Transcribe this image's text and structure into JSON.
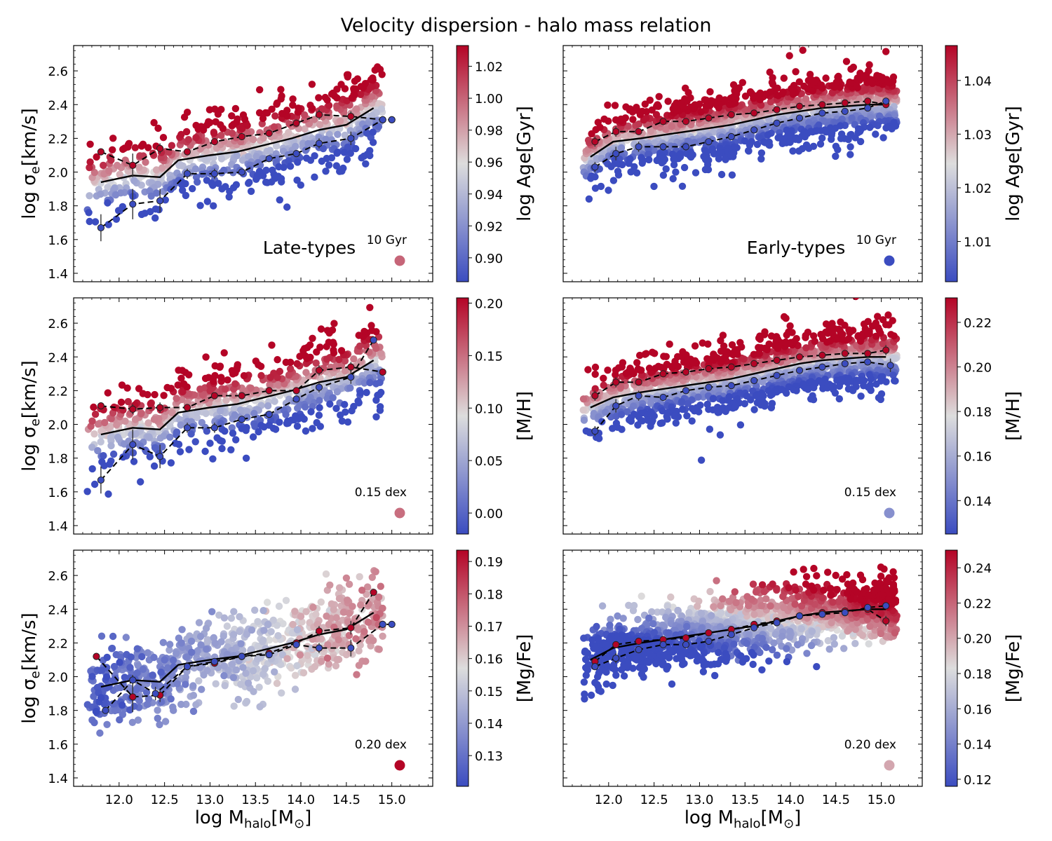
{
  "figure_title": "Velocity dispersion - halo mass relation",
  "xaxis": {
    "label_main": "log M",
    "label_sub": "halo",
    "label_unit": "[M",
    "label_sun": "⊙",
    "label_close": "]",
    "range": [
      11.5,
      15.45
    ],
    "ticks": [
      12.0,
      12.5,
      13.0,
      13.5,
      14.0,
      14.5,
      15.0
    ],
    "tick_labels": [
      "12.0",
      "12.5",
      "13.0",
      "13.5",
      "14.0",
      "14.5",
      "15.0"
    ]
  },
  "yaxis": {
    "label_main": "log σ",
    "label_sub": "e",
    "label_unit": "[km/s]",
    "range": [
      1.35,
      2.75
    ],
    "ticks": [
      1.4,
      1.6,
      1.8,
      2.0,
      2.2,
      2.4,
      2.6
    ],
    "tick_labels": [
      "1.4",
      "1.6",
      "1.8",
      "2.0",
      "2.2",
      "2.4",
      "2.6"
    ]
  },
  "panel_labels": {
    "late": "Late-types",
    "early": "Early-types"
  },
  "colormap": {
    "name": "coolwarm",
    "low": "#3b4cc0",
    "mid": "#dddddd",
    "high": "#b40426"
  },
  "chart_data": [
    {
      "id": "late-age",
      "type": "scatter",
      "population": "Late-types",
      "property": "Age",
      "colorbar": {
        "label": "log Age[Gyr]",
        "range": [
          0.885,
          1.033
        ],
        "ticks": [
          0.9,
          0.92,
          0.94,
          0.96,
          0.98,
          1.0,
          1.02
        ],
        "tick_labels": [
          "0.90",
          "0.92",
          "0.94",
          "0.96",
          "0.98",
          "1.00",
          "1.02"
        ]
      },
      "marker_note": "10 Gyr",
      "marker_value": 1.0,
      "running_mean": {
        "x": [
          11.8,
          12.15,
          12.45,
          12.65,
          13.0,
          13.3,
          13.6,
          13.9,
          14.2,
          14.5,
          14.8
        ],
        "y": [
          1.94,
          1.98,
          1.97,
          2.07,
          2.1,
          2.12,
          2.16,
          2.2,
          2.25,
          2.28,
          2.38
        ]
      },
      "upper_median": {
        "x": [
          11.8,
          12.15,
          12.45,
          12.75,
          13.05,
          13.35,
          13.65,
          13.95,
          14.2,
          14.55,
          14.9,
          15.0
        ],
        "y": [
          2.12,
          2.04,
          2.14,
          2.12,
          2.18,
          2.21,
          2.23,
          2.29,
          2.34,
          2.33,
          2.31,
          2.31
        ],
        "yerr": [
          0.02,
          0.07,
          0.03,
          0.02,
          0.02,
          0.02,
          0.02,
          0.02,
          0.03,
          0.03,
          0.0,
          0.0
        ]
      },
      "lower_median": {
        "x": [
          11.8,
          12.15,
          12.45,
          12.75,
          13.05,
          13.35,
          13.65,
          13.95,
          14.2,
          14.55,
          14.9,
          15.0
        ],
        "y": [
          1.67,
          1.81,
          1.83,
          1.99,
          1.99,
          2.0,
          2.08,
          2.11,
          2.17,
          2.2,
          2.31,
          2.31
        ],
        "yerr": [
          0.08,
          0.09,
          0.07,
          0.03,
          0.03,
          0.02,
          0.02,
          0.02,
          0.03,
          0.04,
          0.0,
          0.0
        ]
      }
    },
    {
      "id": "early-age",
      "type": "scatter",
      "population": "Early-types",
      "property": "Age",
      "colorbar": {
        "label": "log Age[Gyr]",
        "range": [
          1.0025,
          1.0465
        ],
        "ticks": [
          1.01,
          1.02,
          1.03,
          1.04
        ],
        "tick_labels": [
          "1.01",
          "1.02",
          "1.03",
          "1.04"
        ]
      },
      "marker_note": "10 Gyr",
      "marker_value": 1.0025,
      "running_mean": {
        "x": [
          11.8,
          12.05,
          12.35,
          12.6,
          12.85,
          13.1,
          13.35,
          13.6,
          13.85,
          14.1,
          14.35,
          14.6,
          14.85,
          15.05
        ],
        "y": [
          2.09,
          2.18,
          2.2,
          2.22,
          2.24,
          2.26,
          2.28,
          2.31,
          2.34,
          2.36,
          2.38,
          2.39,
          2.4,
          2.4
        ]
      },
      "upper_median": {
        "x": [
          11.85,
          12.08,
          12.33,
          12.6,
          12.85,
          13.1,
          13.35,
          13.6,
          13.85,
          14.1,
          14.35,
          14.6,
          14.85,
          15.05
        ],
        "y": [
          2.18,
          2.24,
          2.24,
          2.3,
          2.3,
          2.32,
          2.34,
          2.35,
          2.37,
          2.39,
          2.4,
          2.41,
          2.42,
          2.4
        ],
        "yerr": [
          0.03,
          0.03,
          0.02,
          0.02,
          0.02,
          0.02,
          0.02,
          0.02,
          0.02,
          0.02,
          0.02,
          0.02,
          0.02,
          0.02
        ]
      },
      "lower_median": {
        "x": [
          11.85,
          12.08,
          12.33,
          12.6,
          12.85,
          13.1,
          13.35,
          13.6,
          13.85,
          14.1,
          14.35,
          14.6,
          14.85,
          15.05
        ],
        "y": [
          2.03,
          2.11,
          2.15,
          2.15,
          2.15,
          2.18,
          2.21,
          2.25,
          2.29,
          2.32,
          2.35,
          2.36,
          2.38,
          2.42
        ],
        "yerr": [
          0.03,
          0.04,
          0.03,
          0.02,
          0.02,
          0.02,
          0.02,
          0.02,
          0.02,
          0.02,
          0.02,
          0.02,
          0.02,
          0.02
        ]
      }
    },
    {
      "id": "late-mh",
      "type": "scatter",
      "population": "Late-types",
      "property": "[M/H]",
      "colorbar": {
        "label": "[M/H]",
        "range": [
          -0.02,
          0.205
        ],
        "ticks": [
          0.0,
          0.05,
          0.1,
          0.15,
          0.2
        ],
        "tick_labels": [
          "0.00",
          "0.05",
          "0.10",
          "0.15",
          "0.20"
        ]
      },
      "marker_note": "0.15 dex",
      "marker_value": 0.15,
      "running_mean": {
        "x": [
          11.8,
          12.15,
          12.45,
          12.65,
          13.0,
          13.3,
          13.6,
          13.9,
          14.2,
          14.5,
          14.8
        ],
        "y": [
          1.94,
          1.98,
          1.97,
          2.07,
          2.1,
          2.12,
          2.16,
          2.2,
          2.25,
          2.28,
          2.38
        ]
      },
      "upper_median": {
        "x": [
          11.8,
          12.15,
          12.45,
          12.75,
          13.05,
          13.35,
          13.65,
          13.95,
          14.2,
          14.55,
          14.9
        ],
        "y": [
          2.11,
          2.09,
          2.1,
          2.1,
          2.17,
          2.17,
          2.2,
          2.2,
          2.32,
          2.34,
          2.31
        ],
        "yerr": [
          0.02,
          0.03,
          0.03,
          0.02,
          0.02,
          0.02,
          0.02,
          0.02,
          0.03,
          0.03,
          0.0
        ]
      },
      "lower_median": {
        "x": [
          11.8,
          12.15,
          12.45,
          12.75,
          13.05,
          13.35,
          13.65,
          13.95,
          14.2,
          14.55,
          14.8
        ],
        "y": [
          1.67,
          1.88,
          1.81,
          1.98,
          1.98,
          2.03,
          2.06,
          2.15,
          2.22,
          2.28,
          2.5
        ],
        "yerr": [
          0.08,
          0.09,
          0.07,
          0.03,
          0.03,
          0.02,
          0.02,
          0.02,
          0.03,
          0.04,
          0.0
        ]
      }
    },
    {
      "id": "early-mh",
      "type": "scatter",
      "population": "Early-types",
      "property": "[M/H]",
      "colorbar": {
        "label": "[M/H]",
        "range": [
          0.125,
          0.231
        ],
        "ticks": [
          0.14,
          0.16,
          0.18,
          0.2,
          0.22
        ],
        "tick_labels": [
          "0.14",
          "0.16",
          "0.18",
          "0.20",
          "0.22"
        ]
      },
      "marker_note": "0.15 dex",
      "marker_value": 0.15,
      "running_mean": {
        "x": [
          11.8,
          12.05,
          12.35,
          12.6,
          12.85,
          13.1,
          13.35,
          13.6,
          13.85,
          14.1,
          14.35,
          14.6,
          14.85,
          15.05
        ],
        "y": [
          2.1,
          2.16,
          2.19,
          2.21,
          2.23,
          2.25,
          2.27,
          2.3,
          2.33,
          2.36,
          2.38,
          2.39,
          2.4,
          2.4
        ]
      },
      "upper_median": {
        "x": [
          11.85,
          12.08,
          12.33,
          12.6,
          12.85,
          13.1,
          13.35,
          13.6,
          13.85,
          14.1,
          14.35,
          14.6,
          14.85,
          15.05
        ],
        "y": [
          2.17,
          2.25,
          2.25,
          2.3,
          2.31,
          2.33,
          2.34,
          2.36,
          2.38,
          2.4,
          2.41,
          2.42,
          2.42,
          2.44
        ],
        "yerr": [
          0.03,
          0.03,
          0.02,
          0.02,
          0.02,
          0.02,
          0.02,
          0.02,
          0.02,
          0.02,
          0.02,
          0.02,
          0.02,
          0.03
        ]
      },
      "lower_median": {
        "x": [
          11.85,
          12.08,
          12.33,
          12.6,
          12.85,
          13.1,
          13.35,
          13.6,
          13.85,
          14.1,
          14.35,
          14.6,
          14.85,
          15.1
        ],
        "y": [
          1.96,
          2.11,
          2.17,
          2.16,
          2.2,
          2.22,
          2.23,
          2.26,
          2.29,
          2.32,
          2.34,
          2.36,
          2.37,
          2.35
        ],
        "yerr": [
          0.03,
          0.04,
          0.03,
          0.02,
          0.02,
          0.02,
          0.02,
          0.02,
          0.02,
          0.02,
          0.02,
          0.02,
          0.02,
          0.04
        ]
      }
    },
    {
      "id": "late-mgfe",
      "type": "scatter",
      "population": "Late-types",
      "property": "[Mg/Fe]",
      "colorbar": {
        "label": "[Mg/Fe]",
        "range": [
          0.1205,
          0.1935
        ],
        "ticks": [
          0.13,
          0.14,
          0.15,
          0.16,
          0.17,
          0.18,
          0.19
        ],
        "tick_labels": [
          "0.13",
          "0.14",
          "0.15",
          "0.16",
          "0.17",
          "0.18",
          "0.19"
        ]
      },
      "marker_note": "0.20 dex",
      "marker_value": 0.2,
      "running_mean": {
        "x": [
          11.8,
          12.15,
          12.45,
          12.65,
          13.0,
          13.3,
          13.6,
          13.9,
          14.2,
          14.5,
          14.8
        ],
        "y": [
          1.94,
          1.98,
          1.97,
          2.07,
          2.1,
          2.12,
          2.16,
          2.2,
          2.25,
          2.28,
          2.38
        ]
      },
      "upper_median": {
        "x": [
          11.75,
          12.15,
          12.45,
          12.75,
          13.05,
          13.35,
          13.65,
          13.95,
          14.2,
          14.55,
          14.8
        ],
        "y": [
          2.12,
          1.88,
          1.89,
          2.06,
          2.08,
          2.12,
          2.14,
          2.2,
          2.27,
          2.29,
          2.5
        ],
        "yerr": [
          0.0,
          0.09,
          0.04,
          0.02,
          0.02,
          0.02,
          0.02,
          0.02,
          0.03,
          0.04,
          0.0
        ]
      },
      "lower_median": {
        "x": [
          11.85,
          12.15,
          12.4,
          12.75,
          13.05,
          13.35,
          13.65,
          13.95,
          14.2,
          14.55,
          14.9,
          15.0
        ],
        "y": [
          1.8,
          1.98,
          1.9,
          2.06,
          2.09,
          2.12,
          2.13,
          2.19,
          2.17,
          2.17,
          2.31,
          2.31
        ],
        "yerr": [
          0.0,
          0.03,
          0.04,
          0.02,
          0.02,
          0.02,
          0.02,
          0.02,
          0.03,
          0.05,
          0.0,
          0.0
        ]
      }
    },
    {
      "id": "early-mgfe",
      "type": "scatter",
      "population": "Early-types",
      "property": "[Mg/Fe]",
      "colorbar": {
        "label": "[Mg/Fe]",
        "range": [
          0.116,
          0.25
        ],
        "ticks": [
          0.12,
          0.14,
          0.16,
          0.18,
          0.2,
          0.22,
          0.24
        ],
        "tick_labels": [
          "0.12",
          "0.14",
          "0.16",
          "0.18",
          "0.20",
          "0.22",
          "0.24"
        ]
      },
      "marker_note": "0.20 dex",
      "marker_value": 0.2,
      "running_mean": {
        "x": [
          11.8,
          12.05,
          12.35,
          12.6,
          12.85,
          13.1,
          13.35,
          13.6,
          13.85,
          14.1,
          14.35,
          14.6,
          14.85,
          15.05
        ],
        "y": [
          2.1,
          2.17,
          2.2,
          2.22,
          2.24,
          2.26,
          2.28,
          2.3,
          2.33,
          2.36,
          2.38,
          2.39,
          2.4,
          2.4
        ]
      },
      "upper_median": {
        "x": [
          11.85,
          12.08,
          12.33,
          12.6,
          12.85,
          13.1,
          13.35,
          13.6,
          13.85,
          14.1,
          14.35,
          14.6,
          14.85,
          15.05
        ],
        "y": [
          2.09,
          2.19,
          2.21,
          2.22,
          2.23,
          2.26,
          2.28,
          2.31,
          2.33,
          2.36,
          2.38,
          2.39,
          2.4,
          2.33
        ],
        "yerr": [
          0.02,
          0.02,
          0.02,
          0.02,
          0.02,
          0.02,
          0.02,
          0.02,
          0.02,
          0.02,
          0.02,
          0.02,
          0.02,
          0.03
        ]
      },
      "lower_median": {
        "x": [
          11.85,
          12.08,
          12.33,
          12.6,
          12.85,
          13.1,
          13.35,
          13.6,
          13.85,
          14.1,
          14.35,
          14.6,
          14.85,
          15.05
        ],
        "y": [
          2.06,
          2.11,
          2.16,
          2.19,
          2.19,
          2.21,
          2.25,
          2.29,
          2.32,
          2.36,
          2.37,
          2.38,
          2.41,
          2.42
        ],
        "yerr": [
          0.02,
          0.03,
          0.02,
          0.02,
          0.02,
          0.02,
          0.02,
          0.02,
          0.02,
          0.02,
          0.02,
          0.02,
          0.02,
          0.02
        ]
      }
    }
  ]
}
